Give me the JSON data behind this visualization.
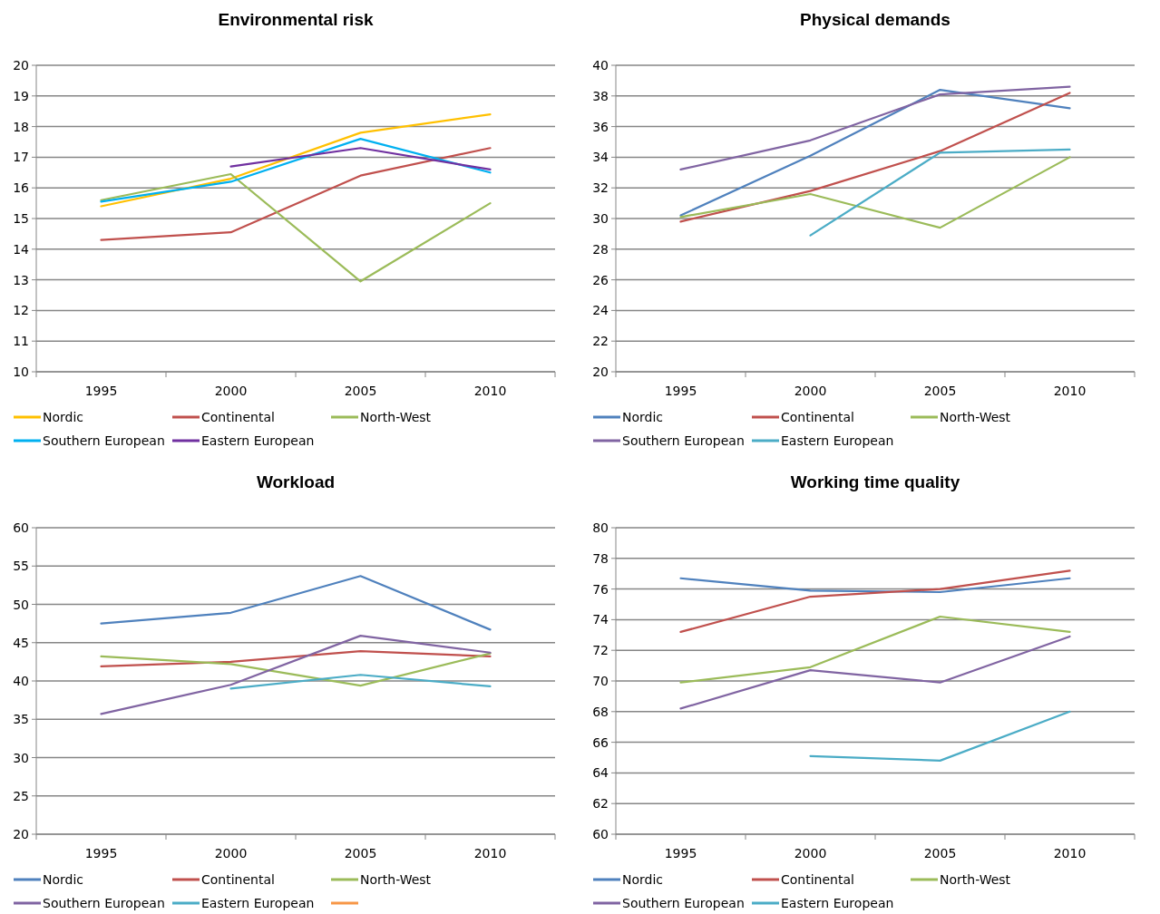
{
  "chart_data": [
    {
      "type": "line",
      "title": "Environmental risk",
      "categories": [
        "1995",
        "2000",
        "2005",
        "2010"
      ],
      "ylim": [
        10,
        20
      ],
      "yticks": [
        10,
        11,
        12,
        13,
        14,
        15,
        16,
        17,
        18,
        19,
        20
      ],
      "grid": "y",
      "legend": "bottom",
      "series": [
        {
          "name": "Nordic",
          "color": "#ffc000",
          "values": [
            15.4,
            16.3,
            17.8,
            18.4
          ]
        },
        {
          "name": "Continental",
          "color": "#c0504d",
          "values": [
            14.3,
            14.55,
            16.4,
            17.3
          ]
        },
        {
          "name": "North-West",
          "color": "#9bbb59",
          "values": [
            15.6,
            16.45,
            12.95,
            15.5
          ]
        },
        {
          "name": "Southern European",
          "color": "#00b0f0",
          "values": [
            15.55,
            16.2,
            17.6,
            16.5
          ]
        },
        {
          "name": "Eastern European",
          "color": "#7030a0",
          "values": [
            null,
            16.7,
            17.3,
            16.6
          ]
        }
      ]
    },
    {
      "type": "line",
      "title": "Physical demands",
      "categories": [
        "1995",
        "2000",
        "2005",
        "2010"
      ],
      "ylim": [
        20,
        40
      ],
      "yticks": [
        20,
        22,
        24,
        26,
        28,
        30,
        32,
        34,
        36,
        38,
        40
      ],
      "grid": "y",
      "legend": "bottom",
      "series": [
        {
          "name": "Nordic",
          "color": "#4f81bd",
          "values": [
            30.2,
            34.1,
            38.4,
            37.2
          ]
        },
        {
          "name": "Continental",
          "color": "#c0504d",
          "values": [
            29.8,
            31.8,
            34.4,
            38.2
          ]
        },
        {
          "name": "North-West",
          "color": "#9bbb59",
          "values": [
            30.1,
            31.6,
            29.4,
            34.0
          ]
        },
        {
          "name": "Southern European",
          "color": "#8064a2",
          "values": [
            33.2,
            35.1,
            38.1,
            38.6
          ]
        },
        {
          "name": "Eastern European",
          "color": "#4bacc6",
          "values": [
            null,
            28.9,
            34.3,
            34.5
          ]
        }
      ]
    },
    {
      "type": "line",
      "title": "Workload",
      "categories": [
        "1995",
        "2000",
        "2005",
        "2010"
      ],
      "ylim": [
        20,
        60
      ],
      "yticks": [
        20,
        25,
        30,
        35,
        40,
        45,
        50,
        55,
        60
      ],
      "grid": "y",
      "legend": "bottom",
      "series": [
        {
          "name": "Nordic",
          "color": "#4f81bd",
          "values": [
            47.5,
            48.9,
            53.7,
            46.7
          ]
        },
        {
          "name": "Continental",
          "color": "#c0504d",
          "values": [
            41.9,
            42.5,
            43.9,
            43.2
          ]
        },
        {
          "name": "North-West",
          "color": "#9bbb59",
          "values": [
            43.2,
            42.2,
            39.4,
            43.6
          ]
        },
        {
          "name": "Southern European",
          "color": "#8064a2",
          "values": [
            35.7,
            39.5,
            45.9,
            43.7
          ]
        },
        {
          "name": "Eastern European",
          "color": "#4bacc6",
          "values": [
            null,
            39.0,
            40.8,
            39.3
          ]
        },
        {
          "color": "#f79646",
          "values": [
            null,
            null,
            null,
            null
          ]
        }
      ]
    },
    {
      "type": "line",
      "title": "Working time quality",
      "categories": [
        "1995",
        "2000",
        "2005",
        "2010"
      ],
      "ylim": [
        60,
        80
      ],
      "yticks": [
        60,
        62,
        64,
        66,
        68,
        70,
        72,
        74,
        76,
        78,
        80
      ],
      "grid": "y",
      "legend": "bottom",
      "series": [
        {
          "name": "Nordic",
          "color": "#4f81bd",
          "values": [
            76.7,
            75.9,
            75.8,
            76.7
          ]
        },
        {
          "name": "Continental",
          "color": "#c0504d",
          "values": [
            73.2,
            75.5,
            76.0,
            77.2
          ]
        },
        {
          "name": "North-West",
          "color": "#9bbb59",
          "values": [
            69.9,
            70.9,
            74.2,
            73.2
          ]
        },
        {
          "name": "Southern European",
          "color": "#8064a2",
          "values": [
            68.2,
            70.7,
            69.9,
            72.9
          ]
        },
        {
          "name": "Eastern European",
          "color": "#4bacc6",
          "values": [
            null,
            65.1,
            64.8,
            68.0
          ]
        }
      ]
    }
  ]
}
